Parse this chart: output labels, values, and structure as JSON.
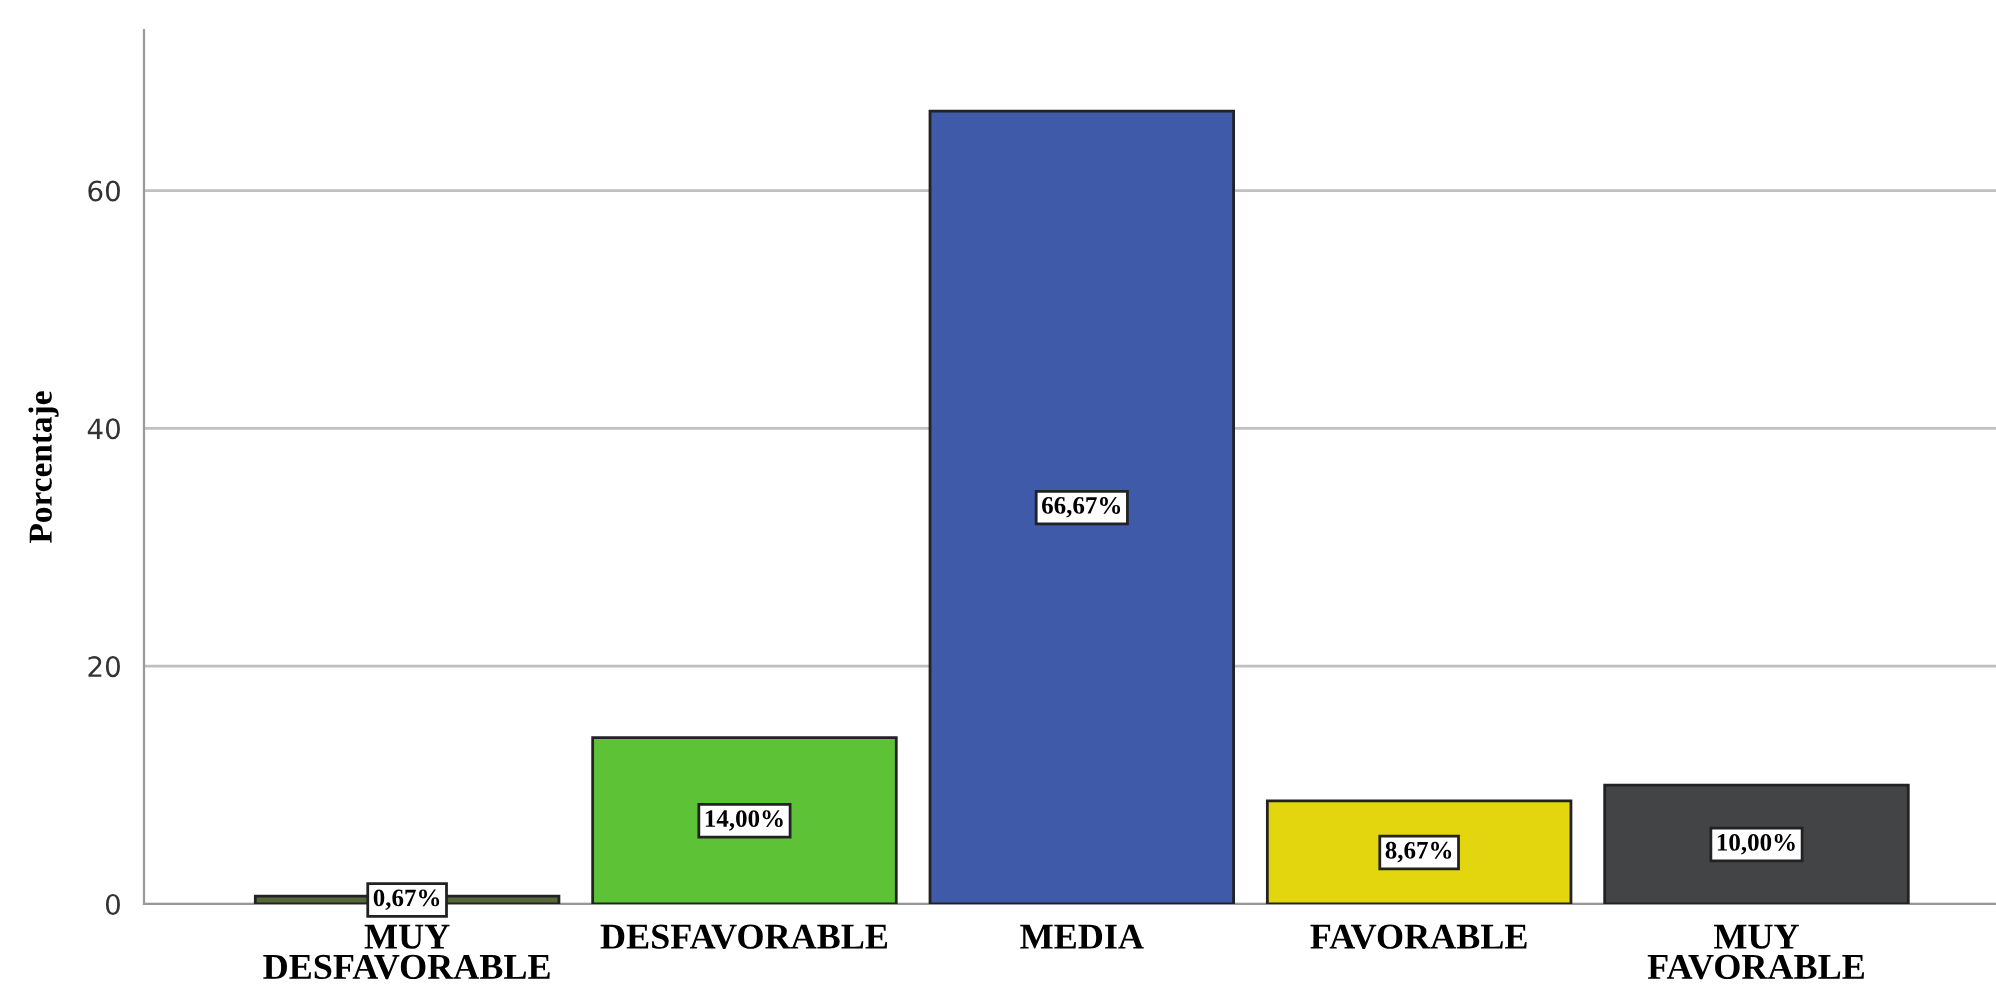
{
  "chart_data": {
    "type": "bar",
    "ylabel": "Porcentaje",
    "categories": [
      "MUY\nDESFAVORABLE",
      "DESFAVORABLE",
      "MEDIA",
      "FAVORABLE",
      "MUY\nFAVORABLE"
    ],
    "values": [
      0.67,
      14.0,
      66.67,
      8.67,
      10.0
    ],
    "colors": [
      "#56683a",
      "#5ec237",
      "#3e5aa8",
      "#e3d60e",
      "#434446"
    ],
    "value_labels": [
      "0,67%",
      "14,00%",
      "66,67%",
      "8,67%",
      "10,00%"
    ],
    "ylim": [
      0,
      73.5
    ],
    "yticks": [
      0,
      20,
      40,
      60
    ],
    "grid": "y",
    "legend": false
  }
}
